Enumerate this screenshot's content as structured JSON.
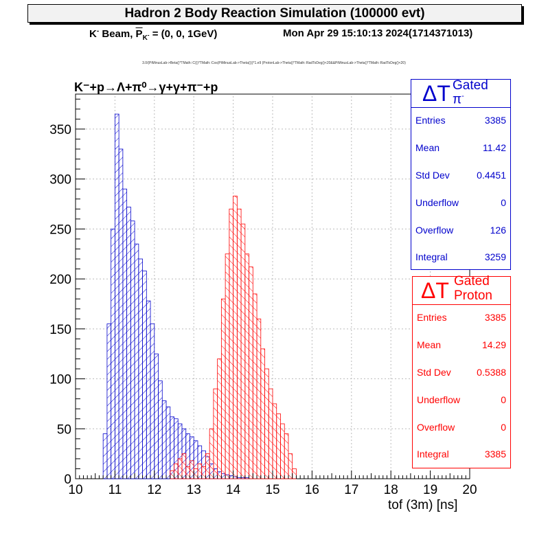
{
  "header": {
    "title": "Hadron 2 Body Reaction Simulation (100000 evt)",
    "beam_prefix": "K",
    "beam_prefix_sup": "-",
    "beam_text": " Beam, ",
    "momentum_symbol": "P",
    "momentum_sub": "K",
    "momentum_sub_sup": "-",
    "momentum_value": " = (0, 0, 1GeV)",
    "datetime": "Mon Apr 29 15:10:13 2024(1714371013)",
    "formula": "3.0/(PiMinusLab->Beta()*TMath::C())*TMath::Cos(PiMinusLab->Theta()))*1.e9 (ProtonLab->Theta()*TMath::RadToDeg()<20&&PiMinusLab->Theta()*TMath::RadToDeg()<20)"
  },
  "reaction": "K⁻+p→Λ+π⁰→γ+γ+π⁻+p",
  "stats": [
    {
      "title_main": "ΔT",
      "title_sub": "π",
      "title_sub_sup": "-",
      "title_sup": "Gated",
      "color": "#0000cc",
      "rows": [
        {
          "label": "Entries",
          "value": "3385"
        },
        {
          "label": "Mean",
          "value": "11.42"
        },
        {
          "label": "Std Dev",
          "value": "0.4451"
        },
        {
          "label": "Underflow",
          "value": "0"
        },
        {
          "label": "Overflow",
          "value": "126"
        },
        {
          "label": "Integral",
          "value": "3259"
        }
      ]
    },
    {
      "title_main": "ΔT",
      "title_sup": "Gated",
      "title_sub": "Proton",
      "color": "#ff0000",
      "rows": [
        {
          "label": "Entries",
          "value": "3385"
        },
        {
          "label": "Mean",
          "value": "14.29"
        },
        {
          "label": "Std Dev",
          "value": "0.5388"
        },
        {
          "label": "Underflow",
          "value": "0"
        },
        {
          "label": "Overflow",
          "value": "0"
        },
        {
          "label": "Integral",
          "value": "3385"
        }
      ]
    }
  ],
  "chart_data": {
    "type": "bar",
    "xlabel": "tof (3m) [ns]",
    "ylabel": "",
    "xlim": [
      10,
      20
    ],
    "ylim": [
      0,
      385
    ],
    "bin_width": 0.1,
    "xticks": [
      10,
      11,
      12,
      13,
      14,
      15,
      16,
      17,
      18,
      19,
      20
    ],
    "yticks": [
      0,
      50,
      100,
      150,
      200,
      250,
      300,
      350
    ],
    "grid": true,
    "series": [
      {
        "name": "ΔT π- Gated",
        "color": "#0000cc",
        "x_start": 10.7,
        "values": [
          45,
          155,
          250,
          365,
          330,
          290,
          272,
          258,
          235,
          220,
          208,
          178,
          155,
          125,
          98,
          78,
          72,
          62,
          60,
          55,
          50,
          45,
          42,
          38,
          33,
          28,
          22,
          15,
          10,
          7,
          5,
          4,
          3,
          2,
          1,
          1,
          1
        ]
      },
      {
        "name": "ΔT Proton Gated",
        "color": "#ff0000",
        "x_start": 12.4,
        "values": [
          8,
          15,
          20,
          25,
          12,
          18,
          10,
          15,
          12,
          25,
          50,
          90,
          120,
          180,
          225,
          270,
          283,
          270,
          255,
          225,
          212,
          185,
          160,
          130,
          110,
          90,
          75,
          65,
          55,
          45,
          25,
          10
        ]
      }
    ]
  }
}
